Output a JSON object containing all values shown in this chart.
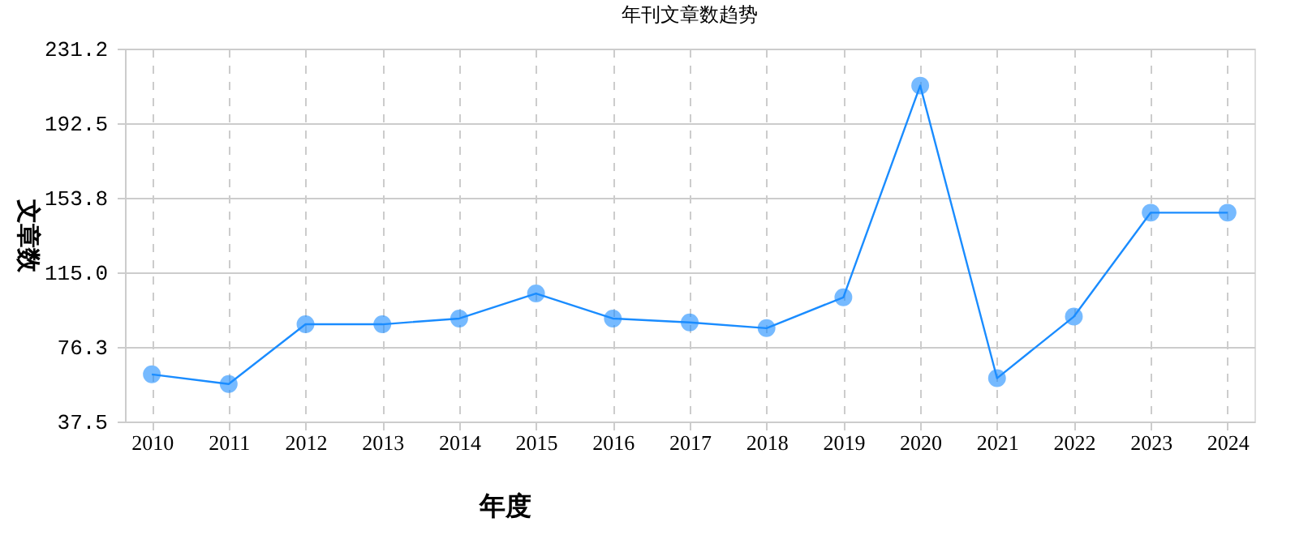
{
  "chart_data": {
    "type": "line",
    "title": "年刊文章数趋势",
    "xlabel": "年度",
    "ylabel": "文章数",
    "categories": [
      "2010",
      "2011",
      "2012",
      "2013",
      "2014",
      "2015",
      "2016",
      "2017",
      "2018",
      "2019",
      "2020",
      "2021",
      "2022",
      "2023",
      "2024"
    ],
    "series": [
      {
        "color": "#1a8cff",
        "values": [
          62,
          57,
          88,
          88,
          91,
          104,
          91,
          89,
          86,
          102,
          212,
          60,
          92,
          146,
          146
        ]
      }
    ],
    "ylim": [
      37.5,
      231.2
    ],
    "yticks": [
      37.5,
      76.3,
      {
        "value": 115,
        "label": "115.0"
      },
      153.8,
      192.5,
      231.2
    ],
    "grid": true,
    "marker": "circle",
    "line_style": "solid"
  }
}
